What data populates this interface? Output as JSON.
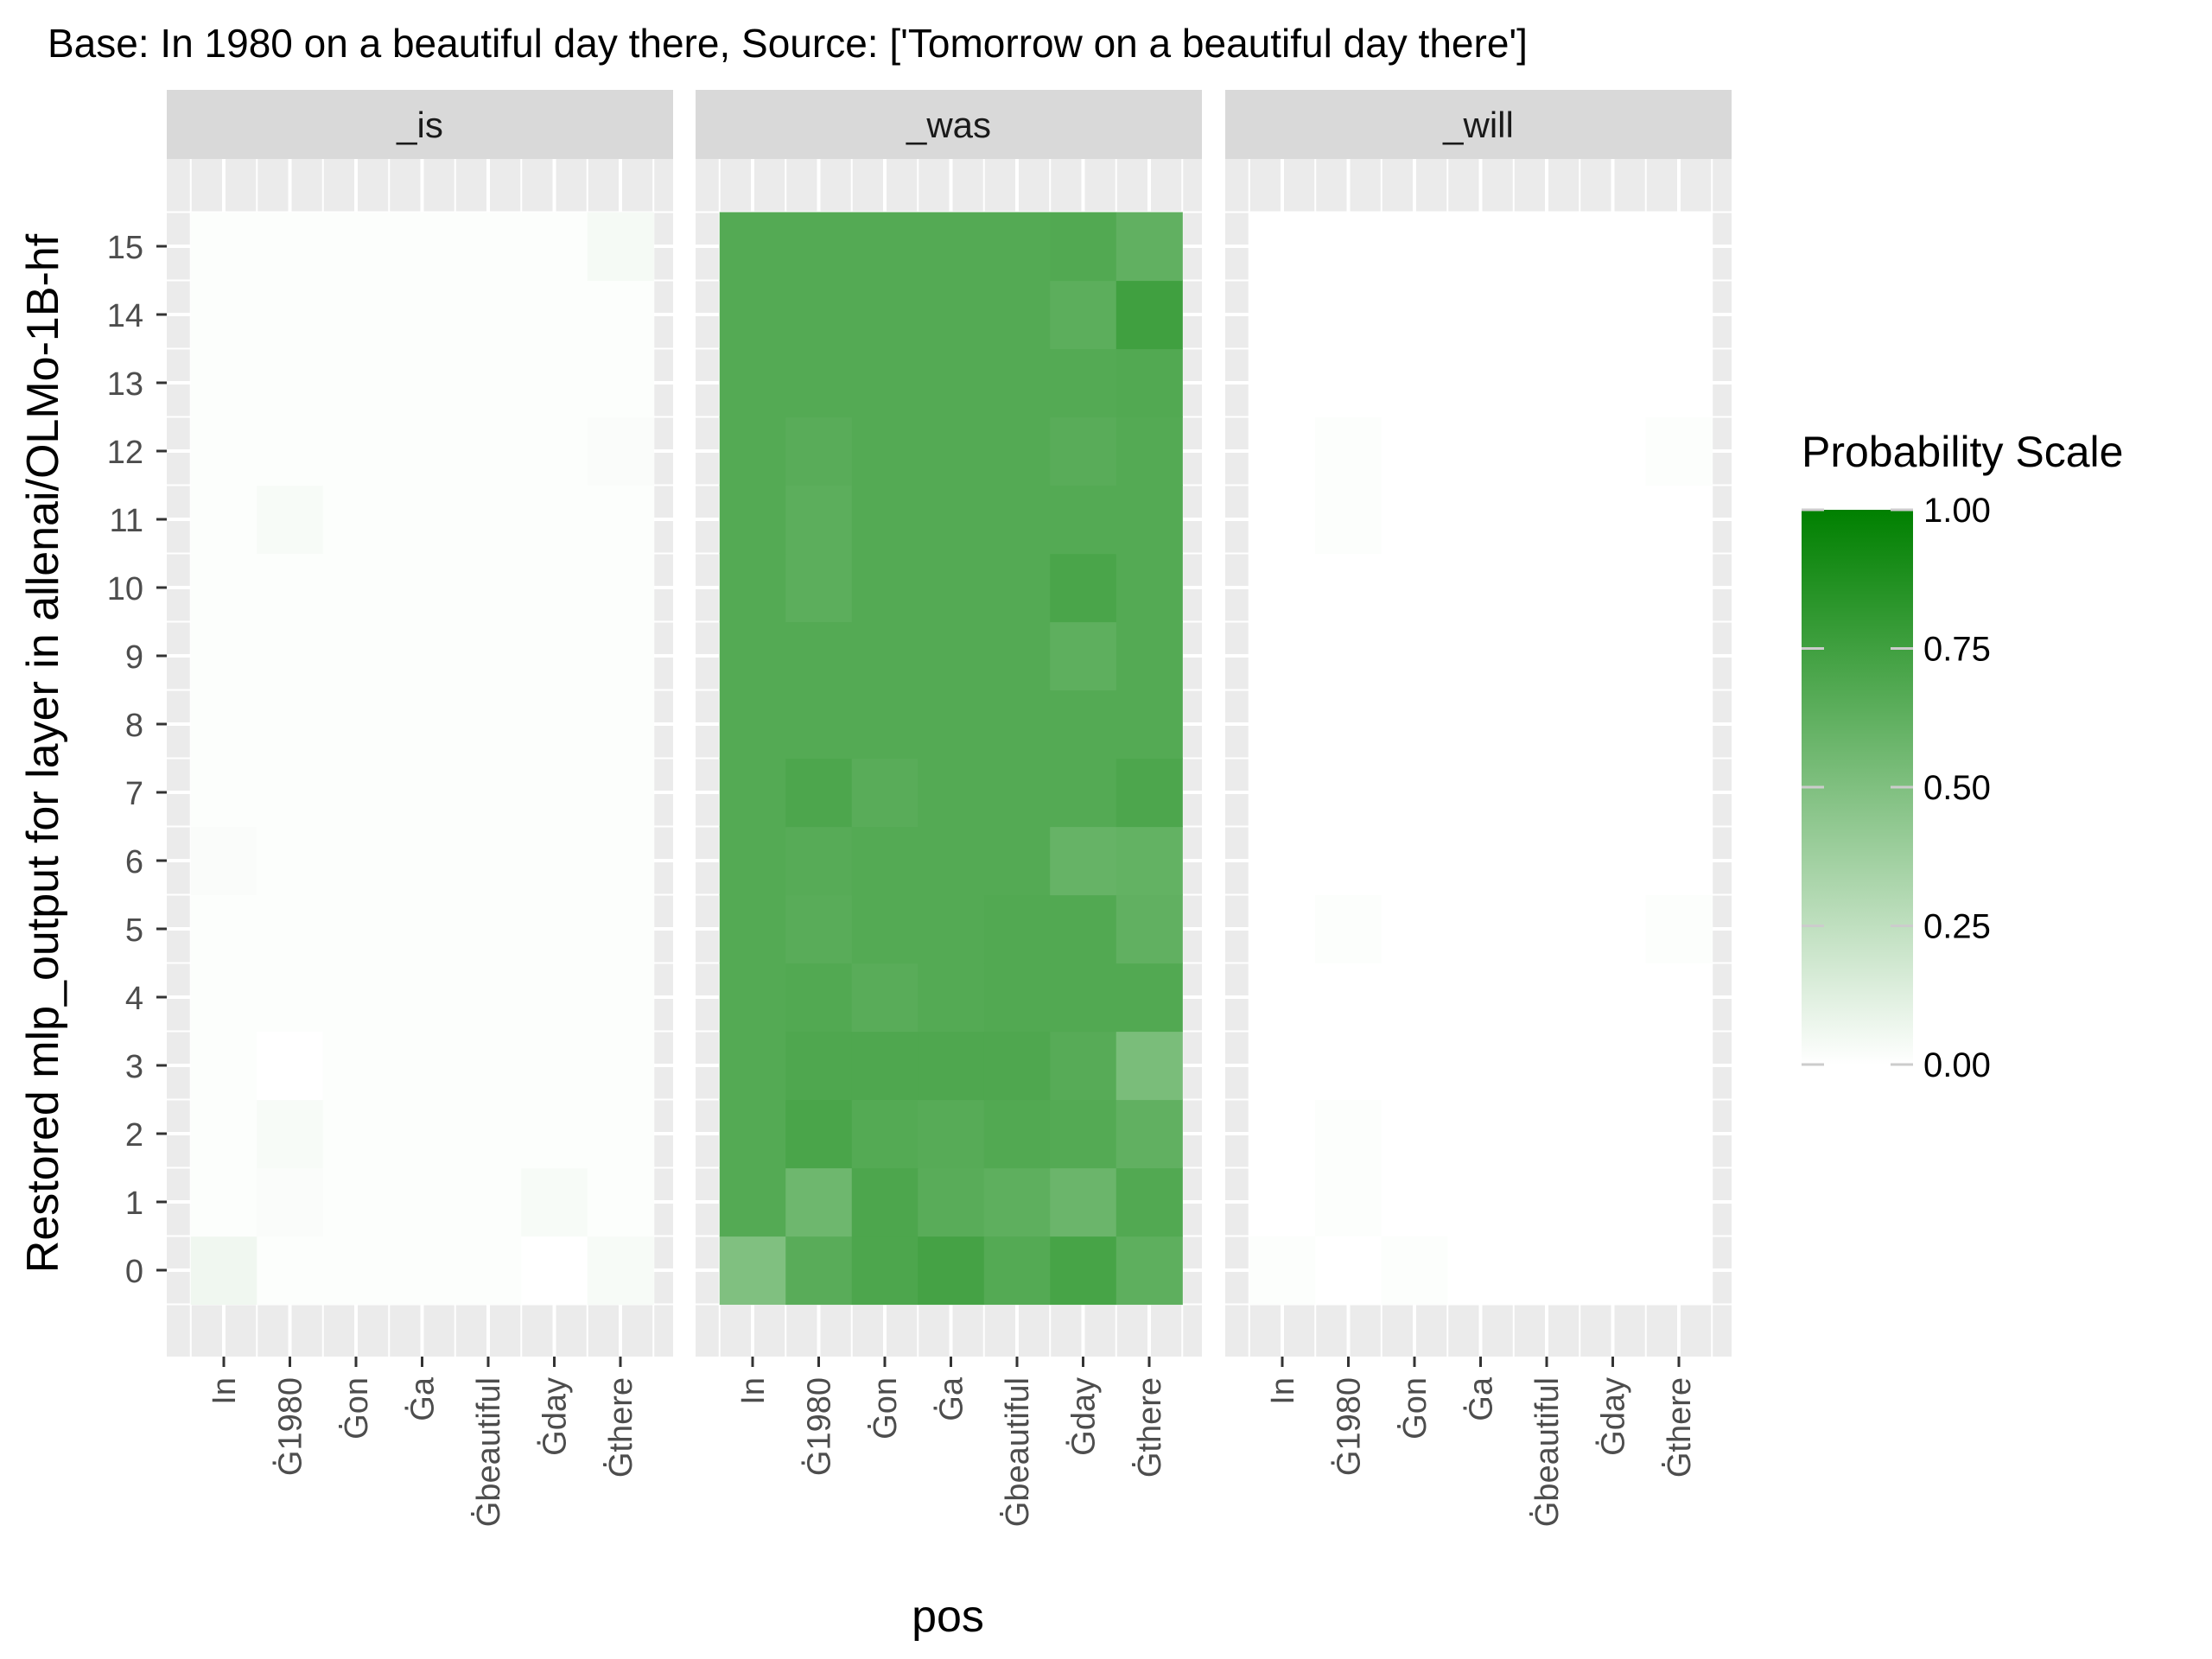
{
  "chart_data": {
    "type": "heatmap",
    "title": "Base: In 1980 on a beautiful day there, Source: ['Tomorrow on a beautiful day there']",
    "xlabel": "pos",
    "ylabel": "Restored mlp_output for layer in allenai/OLMo-1B-hf",
    "x_categories": [
      "In",
      "Ġ̇G1980",
      "Ġ̇Gon",
      "Ġ̇Ga",
      "Ġ̇Gbeautiful",
      "Ġ̇Gday",
      "Ġ̇Gthere"
    ],
    "x_tick_labels": [
      "In",
      "Ġ̇1980",
      "Ġ̇on",
      "Ġ̇a",
      "Ġ̇beautiful",
      "Ġ̇day",
      "Ġ̇there"
    ],
    "y_categories": [
      0,
      1,
      2,
      3,
      4,
      5,
      6,
      7,
      8,
      9,
      10,
      11,
      12,
      13,
      14,
      15
    ],
    "facets": [
      {
        "label": "_is",
        "values": [
          [
            0.06,
            0.01,
            0.01,
            0.01,
            0.01,
            0.0,
            0.03
          ],
          [
            0.01,
            0.02,
            0.01,
            0.01,
            0.01,
            0.03,
            0.01
          ],
          [
            0.01,
            0.03,
            0.01,
            0.01,
            0.01,
            0.01,
            0.01
          ],
          [
            0.01,
            0.0,
            0.01,
            0.01,
            0.01,
            0.01,
            0.01
          ],
          [
            0.01,
            0.01,
            0.01,
            0.01,
            0.01,
            0.01,
            0.01
          ],
          [
            0.01,
            0.01,
            0.01,
            0.01,
            0.01,
            0.01,
            0.01
          ],
          [
            0.02,
            0.01,
            0.01,
            0.01,
            0.01,
            0.01,
            0.01
          ],
          [
            0.01,
            0.01,
            0.01,
            0.01,
            0.01,
            0.01,
            0.01
          ],
          [
            0.01,
            0.01,
            0.01,
            0.01,
            0.01,
            0.01,
            0.01
          ],
          [
            0.01,
            0.01,
            0.01,
            0.01,
            0.01,
            0.01,
            0.01
          ],
          [
            0.01,
            0.01,
            0.01,
            0.01,
            0.01,
            0.01,
            0.01
          ],
          [
            0.01,
            0.03,
            0.01,
            0.01,
            0.01,
            0.01,
            0.01
          ],
          [
            0.01,
            0.01,
            0.01,
            0.01,
            0.01,
            0.01,
            0.02
          ],
          [
            0.01,
            0.01,
            0.01,
            0.01,
            0.01,
            0.01,
            0.01
          ],
          [
            0.01,
            0.01,
            0.01,
            0.01,
            0.01,
            0.01,
            0.01
          ],
          [
            0.01,
            0.01,
            0.01,
            0.01,
            0.01,
            0.01,
            0.04
          ]
        ]
      },
      {
        "label": "_was",
        "values": [
          [
            0.5,
            0.65,
            0.7,
            0.73,
            0.67,
            0.72,
            0.63
          ],
          [
            0.67,
            0.57,
            0.7,
            0.65,
            0.63,
            0.58,
            0.68
          ],
          [
            0.67,
            0.71,
            0.67,
            0.66,
            0.68,
            0.67,
            0.62
          ],
          [
            0.67,
            0.69,
            0.69,
            0.69,
            0.69,
            0.66,
            0.52
          ],
          [
            0.67,
            0.68,
            0.65,
            0.67,
            0.68,
            0.68,
            0.68
          ],
          [
            0.67,
            0.65,
            0.67,
            0.67,
            0.68,
            0.68,
            0.62
          ],
          [
            0.67,
            0.66,
            0.67,
            0.67,
            0.67,
            0.6,
            0.61
          ],
          [
            0.67,
            0.7,
            0.65,
            0.67,
            0.67,
            0.67,
            0.7
          ],
          [
            0.67,
            0.67,
            0.67,
            0.67,
            0.67,
            0.67,
            0.67
          ],
          [
            0.67,
            0.67,
            0.67,
            0.67,
            0.67,
            0.63,
            0.67
          ],
          [
            0.67,
            0.64,
            0.67,
            0.67,
            0.67,
            0.71,
            0.67
          ],
          [
            0.67,
            0.64,
            0.67,
            0.67,
            0.67,
            0.67,
            0.67
          ],
          [
            0.67,
            0.65,
            0.67,
            0.67,
            0.67,
            0.65,
            0.67
          ],
          [
            0.67,
            0.67,
            0.67,
            0.67,
            0.67,
            0.67,
            0.68
          ],
          [
            0.67,
            0.67,
            0.67,
            0.67,
            0.67,
            0.64,
            0.75
          ],
          [
            0.67,
            0.67,
            0.67,
            0.67,
            0.67,
            0.68,
            0.62
          ]
        ]
      },
      {
        "label": "_will",
        "values": [
          [
            0.01,
            0.0,
            0.01,
            0.0,
            0.0,
            0.0,
            0.0
          ],
          [
            0.0,
            0.01,
            0.0,
            0.0,
            0.0,
            0.0,
            0.0
          ],
          [
            0.0,
            0.01,
            0.0,
            0.0,
            0.0,
            0.0,
            0.0
          ],
          [
            0.0,
            0.0,
            0.0,
            0.0,
            0.0,
            0.0,
            0.0
          ],
          [
            0.0,
            0.0,
            0.0,
            0.0,
            0.0,
            0.0,
            0.0
          ],
          [
            0.0,
            0.01,
            0.0,
            0.0,
            0.0,
            0.0,
            0.01
          ],
          [
            0.0,
            0.0,
            0.0,
            0.0,
            0.0,
            0.0,
            0.0
          ],
          [
            0.0,
            0.0,
            0.0,
            0.0,
            0.0,
            0.0,
            0.0
          ],
          [
            0.0,
            0.0,
            0.0,
            0.0,
            0.0,
            0.0,
            0.0
          ],
          [
            0.0,
            0.0,
            0.0,
            0.0,
            0.0,
            0.0,
            0.0
          ],
          [
            0.0,
            0.0,
            0.0,
            0.0,
            0.0,
            0.0,
            0.0
          ],
          [
            0.0,
            0.01,
            0.0,
            0.0,
            0.0,
            0.0,
            0.0
          ],
          [
            0.0,
            0.01,
            0.0,
            0.0,
            0.0,
            0.0,
            0.01
          ],
          [
            0.0,
            0.0,
            0.0,
            0.0,
            0.0,
            0.0,
            0.0
          ],
          [
            0.0,
            0.0,
            0.0,
            0.0,
            0.0,
            0.0,
            0.0
          ],
          [
            0.0,
            0.0,
            0.0,
            0.0,
            0.0,
            0.0,
            0.0
          ]
        ]
      }
    ],
    "legend": {
      "title": "Probability Scale",
      "ticks": [
        1.0,
        0.75,
        0.5,
        0.25,
        0.0
      ],
      "tick_labels": [
        "1.00",
        "0.75",
        "0.50",
        "0.25",
        "0.00"
      ],
      "low_color": "#ffffff",
      "high_color": "#008000",
      "placement": "right"
    },
    "panel_background": "#ebebeb",
    "strip_background": "#d9d9d9",
    "grid": true
  }
}
